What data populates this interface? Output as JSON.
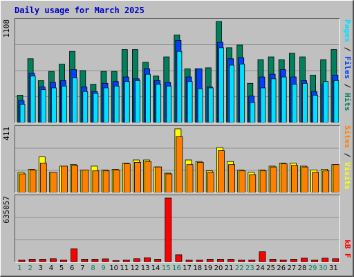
{
  "title": "Daily usage for March 2025",
  "colors": {
    "hits": "#00805c",
    "files": "#0040ff",
    "pages": "#00e0ff",
    "visits": "#ffff00",
    "sites": "#ff8000",
    "kbf": "#ff0000",
    "weekday": "#000000",
    "weekend": "#00805c"
  },
  "chart_data": [
    {
      "type": "bar",
      "panel": "top",
      "max_label": "1108",
      "ylim": [
        0,
        1108
      ],
      "legend": [
        "Pages",
        "Files",
        "Hits"
      ],
      "x": [
        1,
        2,
        3,
        4,
        5,
        6,
        7,
        8,
        9,
        10,
        11,
        12,
        13,
        14,
        15,
        16,
        17,
        18,
        19,
        20,
        21,
        22,
        23,
        24,
        25,
        26,
        27,
        28,
        29,
        30,
        31
      ],
      "series": [
        {
          "name": "Hits",
          "values": [
            300,
            700,
            460,
            560,
            640,
            780,
            570,
            420,
            560,
            560,
            800,
            800,
            660,
            510,
            720,
            960,
            590,
            590,
            600,
            1108,
            820,
            850,
            430,
            690,
            720,
            690,
            760,
            720,
            520,
            690,
            800
          ]
        },
        {
          "name": "Files",
          "values": [
            240,
            540,
            390,
            440,
            460,
            580,
            390,
            340,
            430,
            450,
            500,
            480,
            590,
            460,
            440,
            900,
            500,
            590,
            390,
            880,
            700,
            710,
            290,
            500,
            530,
            580,
            500,
            460,
            340,
            420,
            520
          ]
        },
        {
          "name": "Pages",
          "values": [
            200,
            510,
            360,
            380,
            400,
            490,
            340,
            320,
            380,
            400,
            450,
            460,
            530,
            420,
            400,
            780,
            450,
            370,
            380,
            820,
            630,
            640,
            220,
            380,
            480,
            500,
            420,
            430,
            300,
            450,
            460
          ]
        }
      ]
    },
    {
      "type": "bar",
      "panel": "middle",
      "max_label": "411",
      "ylim": [
        0,
        411
      ],
      "legend": [
        "Sites",
        "Visits"
      ],
      "x": [
        1,
        2,
        3,
        4,
        5,
        6,
        7,
        8,
        9,
        10,
        11,
        12,
        13,
        14,
        15,
        16,
        17,
        18,
        19,
        20,
        21,
        22,
        23,
        24,
        25,
        26,
        27,
        28,
        29,
        30,
        31
      ],
      "series": [
        {
          "name": "Visits",
          "values": [
            130,
            150,
            230,
            130,
            170,
            180,
            145,
            170,
            145,
            150,
            190,
            210,
            210,
            165,
            125,
            411,
            210,
            200,
            140,
            290,
            200,
            145,
            130,
            145,
            170,
            190,
            190,
            170,
            145,
            150,
            180
          ]
        },
        {
          "name": "Sites",
          "values": [
            120,
            145,
            190,
            130,
            170,
            175,
            145,
            140,
            140,
            145,
            185,
            195,
            200,
            165,
            120,
            360,
            180,
            195,
            130,
            270,
            180,
            140,
            115,
            140,
            165,
            185,
            175,
            165,
            130,
            140,
            180
          ]
        }
      ]
    },
    {
      "type": "bar",
      "panel": "bottom",
      "max_label": "635057",
      "ylim": [
        0,
        635057
      ],
      "legend": [
        "kB F"
      ],
      "x": [
        1,
        2,
        3,
        4,
        5,
        6,
        7,
        8,
        9,
        10,
        11,
        12,
        13,
        14,
        15,
        16,
        17,
        18,
        19,
        20,
        21,
        22,
        23,
        24,
        25,
        26,
        27,
        28,
        29,
        30,
        31
      ],
      "series": [
        {
          "name": "kB F",
          "values": [
            18000,
            24000,
            24000,
            30000,
            18000,
            130000,
            24000,
            24000,
            28000,
            12000,
            18000,
            30000,
            40000,
            24000,
            635057,
            70000,
            18000,
            18000,
            24000,
            24000,
            24000,
            18000,
            18000,
            100000,
            24000,
            18000,
            24000,
            36000,
            18000,
            36000,
            30000
          ]
        }
      ]
    }
  ],
  "x_axis": {
    "labels": [
      "1",
      "2",
      "3",
      "4",
      "5",
      "6",
      "7",
      "8",
      "9",
      "10",
      "11",
      "12",
      "13",
      "14",
      "15",
      "16",
      "17",
      "18",
      "19",
      "20",
      "21",
      "22",
      "23",
      "24",
      "25",
      "26",
      "27",
      "28",
      "29",
      "30",
      "31"
    ],
    "weekend": [
      1,
      2,
      8,
      9,
      15,
      16,
      22,
      23,
      29,
      30
    ]
  }
}
